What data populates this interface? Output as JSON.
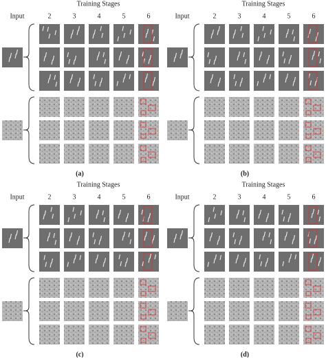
{
  "panels": [
    {
      "header": "Training Stages",
      "input_label": "Input",
      "columns": [
        "2",
        "3",
        "4",
        "5",
        "6"
      ],
      "caption": "(a)"
    },
    {
      "header": "Training Stages",
      "input_label": "Input",
      "columns": [
        "2",
        "3",
        "4",
        "5",
        "6"
      ],
      "caption": "(b)"
    },
    {
      "header": "Training Stages",
      "input_label": "Input",
      "columns": [
        "2",
        "3",
        "4",
        "5",
        "6"
      ],
      "caption": "(c)"
    },
    {
      "header": "Training Stages",
      "input_label": "Input",
      "columns": [
        "2",
        "3",
        "4",
        "5",
        "6"
      ],
      "caption": "(d)"
    }
  ]
}
